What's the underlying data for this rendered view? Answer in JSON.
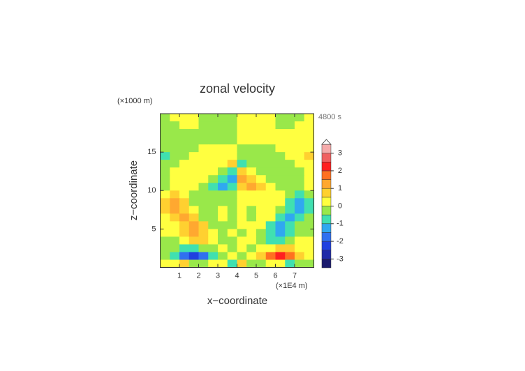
{
  "chart_data": {
    "type": "contour",
    "title": "zonal velocity",
    "x_label": "x−coordinate",
    "y_label": "z−coordinate",
    "x_unit": "(×1E4 m)",
    "y_unit": "(×1000 m)",
    "time_label": "4800 s",
    "xlim": [
      0,
      8
    ],
    "ylim": [
      0,
      20
    ],
    "xticks": [
      1,
      2,
      3,
      4,
      5,
      6,
      7
    ],
    "yticks": [
      5,
      10,
      15
    ],
    "x": [
      0.25,
      0.75,
      1.25,
      1.75,
      2.25,
      2.75,
      3.25,
      3.75,
      4.25,
      4.75,
      5.25,
      5.75,
      6.25,
      6.75,
      7.25,
      7.75
    ],
    "y": [
      19.5,
      18.5,
      17.5,
      16.5,
      15.5,
      14.5,
      13.5,
      12.5,
      11.5,
      10.5,
      9.5,
      8.5,
      7.5,
      6.5,
      5.5,
      4.5,
      3.5,
      2.5,
      1.5,
      0.5
    ],
    "z": [
      [
        -0.2,
        0.2,
        0.3,
        0.2,
        -0.2,
        -0.2,
        -0.2,
        -0.2,
        0.2,
        0.2,
        0.2,
        0.2,
        -0.2,
        -0.3,
        -0.2,
        0.2
      ],
      [
        -0.2,
        -0.2,
        0.2,
        0.2,
        -0.2,
        -0.2,
        -0.2,
        -0.2,
        0.2,
        0.2,
        0.2,
        0.2,
        -0.2,
        -0.2,
        0.2,
        0.2
      ],
      [
        -0.2,
        -0.2,
        -0.2,
        -0.2,
        -0.2,
        -0.2,
        -0.2,
        -0.2,
        0.2,
        0.2,
        0.2,
        0.2,
        0.2,
        0.2,
        0.2,
        0.2
      ],
      [
        -0.2,
        -0.2,
        -0.2,
        -0.2,
        -0.2,
        -0.2,
        -0.2,
        -0.2,
        0.2,
        0.2,
        0.2,
        0.2,
        0.2,
        0.2,
        0.2,
        0.2
      ],
      [
        -0.2,
        -0.2,
        -0.2,
        -0.2,
        0.2,
        0.2,
        0.2,
        0.2,
        -0.2,
        -0.2,
        -0.2,
        -0.2,
        0.2,
        0.2,
        0.2,
        0.2
      ],
      [
        -0.6,
        -0.2,
        -0.2,
        0.2,
        0.2,
        0.2,
        0.2,
        0.2,
        -0.2,
        -0.2,
        -0.2,
        -0.2,
        -0.2,
        0.2,
        0.2,
        0.6
      ],
      [
        -0.2,
        -0.2,
        0.2,
        0.2,
        0.2,
        0.2,
        0.2,
        0.7,
        -0.7,
        -0.2,
        -0.2,
        -0.2,
        -0.2,
        -0.2,
        0.2,
        0.2
      ],
      [
        -0.2,
        0.2,
        0.2,
        0.2,
        0.2,
        0.2,
        -0.2,
        -0.6,
        0.6,
        0.2,
        -0.2,
        -0.2,
        -0.2,
        -0.2,
        -0.2,
        0.2
      ],
      [
        -0.2,
        0.2,
        0.2,
        0.2,
        0.2,
        -0.2,
        -0.7,
        -1.2,
        1.2,
        0.7,
        0.2,
        -0.2,
        -0.2,
        -0.2,
        -0.2,
        0.2
      ],
      [
        -0.2,
        0.2,
        0.2,
        0.2,
        -0.2,
        -0.7,
        -1.2,
        -0.7,
        0.7,
        1.2,
        0.7,
        0.2,
        -0.2,
        -0.2,
        -0.2,
        0.2
      ],
      [
        0.2,
        0.7,
        0.2,
        -0.2,
        -0.2,
        -0.2,
        -0.2,
        -0.2,
        0.2,
        0.2,
        0.2,
        0.2,
        0.2,
        -0.2,
        -0.7,
        -0.2
      ],
      [
        0.7,
        1.2,
        0.7,
        -0.2,
        -0.2,
        -0.2,
        -0.2,
        -0.2,
        0.2,
        0.2,
        0.2,
        0.2,
        0.2,
        -0.7,
        -1.2,
        -0.7
      ],
      [
        0.7,
        1.2,
        0.7,
        0.2,
        -0.2,
        -0.2,
        0.2,
        -0.2,
        0.2,
        -0.2,
        0.2,
        0.2,
        -0.2,
        -0.7,
        -1.2,
        -0.7
      ],
      [
        0.2,
        0.7,
        1.2,
        0.7,
        -0.2,
        -0.2,
        0.2,
        -0.2,
        0.2,
        -0.2,
        0.2,
        0.2,
        -0.7,
        -1.2,
        -0.7,
        -0.2
      ],
      [
        0.2,
        0.2,
        0.7,
        1.2,
        0.7,
        -0.2,
        -0.2,
        -0.2,
        0.2,
        0.2,
        0.2,
        -0.7,
        -1.2,
        -0.7,
        -0.2,
        -0.2
      ],
      [
        0.2,
        0.2,
        0.7,
        1.2,
        0.7,
        0.2,
        -0.2,
        0.2,
        -0.2,
        0.2,
        -0.2,
        -0.7,
        -1.2,
        -0.7,
        -0.2,
        -0.2
      ],
      [
        -0.2,
        -0.2,
        0.2,
        0.7,
        0.7,
        0.2,
        -0.2,
        -0.2,
        0.2,
        0.2,
        -0.2,
        -0.7,
        -0.7,
        -0.2,
        0.2,
        0.2
      ],
      [
        -0.2,
        -0.2,
        -0.7,
        -0.7,
        -0.2,
        -0.2,
        0.2,
        -0.2,
        0.2,
        -0.2,
        0.2,
        0.2,
        0.7,
        0.7,
        0.2,
        0.2
      ],
      [
        -0.2,
        -0.7,
        -1.7,
        -2.2,
        -1.7,
        -0.7,
        -0.2,
        0.2,
        -0.2,
        0.2,
        0.7,
        1.7,
        2.2,
        1.7,
        0.7,
        0.2
      ],
      [
        0.2,
        0.2,
        0.7,
        -0.2,
        -0.2,
        0.2,
        0.2,
        -0.7,
        0.7,
        -0.2,
        -0.2,
        0.2,
        0.2,
        -0.7,
        -0.2,
        -0.2
      ]
    ],
    "levels": [
      -3.5,
      -3,
      -2.5,
      -2,
      -1.5,
      -1,
      -0.5,
      0,
      0.5,
      1,
      1.5,
      2,
      2.5,
      3,
      3.5
    ],
    "colors": [
      "#1a1a6e",
      "#1f2aa8",
      "#2040e0",
      "#3070f0",
      "#30a8f0",
      "#40e0b0",
      "#99e84a",
      "#ffff40",
      "#ffd030",
      "#ffa830",
      "#ff7020",
      "#ff2020",
      "#f06060",
      "#f5aaaa"
    ],
    "colorbar_ticks": [
      -3,
      -2,
      -1,
      0,
      1,
      2,
      3
    ]
  }
}
